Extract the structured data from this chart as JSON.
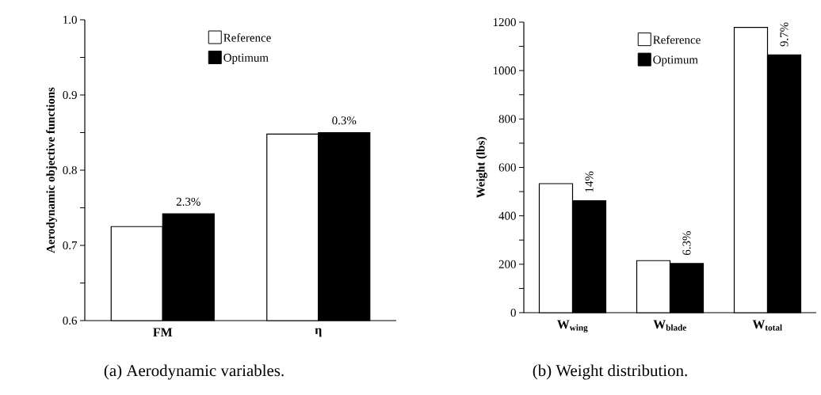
{
  "chart_data": [
    {
      "type": "bar",
      "ylabel": "Aerodynamic objective functions",
      "categories": [
        "FM",
        "η"
      ],
      "series": [
        {
          "name": "Reference",
          "color": "#ffffff",
          "values": [
            0.725,
            0.848
          ]
        },
        {
          "name": "Optimum",
          "color": "#000000",
          "values": [
            0.742,
            0.85
          ]
        }
      ],
      "ylim": [
        0.6,
        1.0
      ],
      "yticks": [
        0.6,
        {
          "value": 0.65,
          "label": null
        },
        0.7,
        {
          "value": 0.75,
          "label": null
        },
        0.8,
        {
          "value": 0.85,
          "label": null
        },
        0.9,
        {
          "value": 0.95,
          "label": null
        },
        {
          "value": 1.0,
          "label": "1.0"
        }
      ],
      "legend": "top",
      "annotations": [
        {
          "text": "2.3%",
          "x": "FM",
          "y": 0.742
        },
        {
          "text": "0.3%",
          "x": "η",
          "y": 0.85
        },
        "(a) Aerodynamic variables."
      ]
    },
    {
      "type": "bar",
      "ylabel": "Weight (lbs)",
      "categories": [
        "W$_{wing}$",
        "W$_{blade}$",
        "W$_{total}$"
      ],
      "series": [
        {
          "name": "Reference",
          "color": "#ffffff",
          "values": [
            533,
            215,
            1178
          ]
        },
        {
          "name": "Optimum",
          "color": "#000000",
          "values": [
            462,
            203,
            1065
          ]
        }
      ],
      "ylim": [
        0,
        1200
      ],
      "yticks": [
        0,
        {
          "value": 100,
          "label": null
        },
        200,
        {
          "value": 300,
          "label": null
        },
        400,
        {
          "value": 500,
          "label": null
        },
        600,
        {
          "value": 700,
          "label": null
        },
        800,
        {
          "value": 900,
          "label": null
        },
        1000,
        {
          "value": 1100,
          "label": null
        },
        1200
      ],
      "legend": "top",
      "annotations": [
        {
          "text": "14%",
          "x": "W$_{wing}$",
          "y": 462
        },
        {
          "text": "6.3%",
          "x": "W$_{blade}$",
          "y": 203
        },
        {
          "text": "9.7%",
          "x": "W$_{total}$",
          "y": 1065
        },
        "(b) Weight distribution."
      ]
    }
  ]
}
